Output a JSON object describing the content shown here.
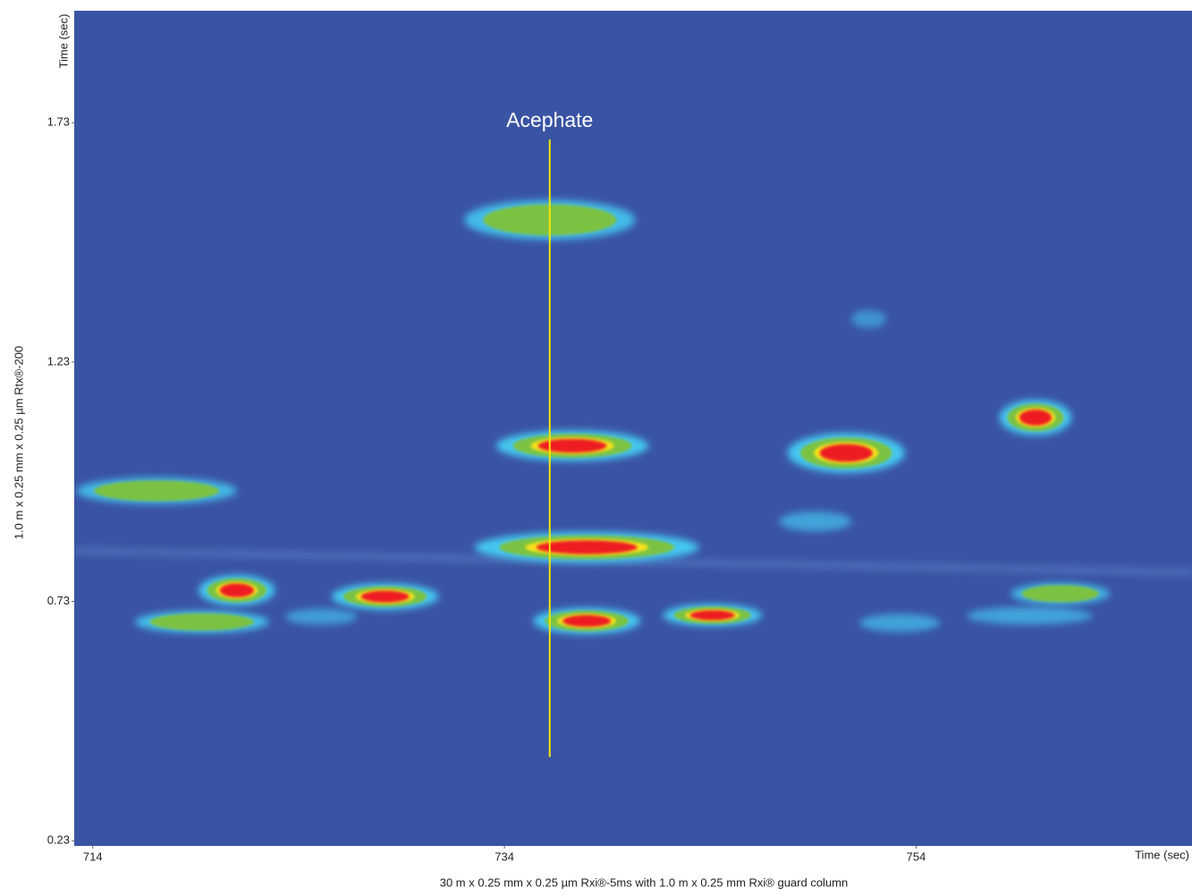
{
  "chart_data": {
    "type": "contour",
    "x_label": "30 m x 0.25 mm x 0.25 µm Rxi®-5ms with 1.0 m x 0.25 mm Rxi® guard column",
    "x_unit": "Time (sec)",
    "y_label": "1.0 m x 0.25 mm x 0.25 µm Rtx®-200",
    "y_unit": "Time (sec)",
    "xlim": [
      713.1,
      767.4
    ],
    "xticks": [
      714,
      734,
      754
    ],
    "ylim": [
      0.219,
      1.964
    ],
    "yticks": [
      1.73,
      1.23,
      0.73,
      0.23
    ],
    "background": "#3a54a4",
    "colors": [
      "#45c8f0",
      "#7cc242",
      "#f4e21b",
      "#ee1c24"
    ],
    "peaks": {
      "x": [
        736.2,
        737.3,
        750.6,
        759.8,
        717.1,
        749.1,
        738.0,
        721.0,
        728.2,
        719.3,
        738.0,
        744.1,
        761.0,
        759.5,
        753.2,
        751.7,
        725.1
      ],
      "y": [
        1.527,
        1.055,
        1.04,
        1.114,
        0.961,
        0.897,
        0.843,
        0.753,
        0.74,
        0.687,
        0.689,
        0.701,
        0.746,
        0.7,
        0.685,
        1.32,
        0.698
      ],
      "width": [
        8.3,
        7.4,
        5.7,
        3.5,
        7.8,
        3.5,
        10.9,
        3.7,
        5.2,
        6.5,
        5.2,
        4.8,
        4.8,
        6.1,
        3.9,
        1.7,
        3.5
      ],
      "height": [
        0.083,
        0.064,
        0.083,
        0.074,
        0.055,
        0.041,
        0.064,
        0.064,
        0.055,
        0.046,
        0.055,
        0.046,
        0.046,
        0.037,
        0.037,
        0.037,
        0.033
      ],
      "intensity": [
        0.55,
        0.85,
        1.0,
        1.0,
        0.5,
        0.3,
        0.95,
        1.0,
        0.85,
        0.6,
        0.95,
        0.85,
        0.45,
        0.3,
        0.3,
        0.15,
        0.25
      ]
    },
    "annotation": {
      "text": "Acephate",
      "x": 736.2,
      "y": [
        0.405,
        1.695
      ],
      "color": "#f2e600"
    }
  }
}
